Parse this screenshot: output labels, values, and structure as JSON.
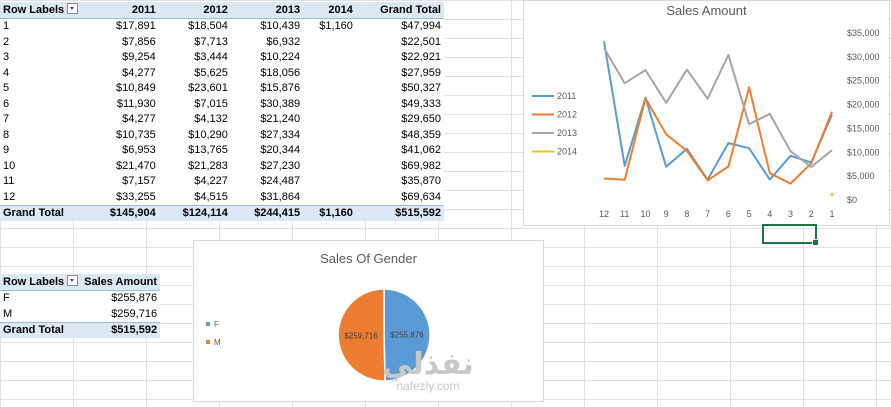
{
  "pivot1": {
    "headers": [
      "Row Labels",
      "2011",
      "2012",
      "2013",
      "2014",
      "Grand Total"
    ],
    "rows": [
      [
        "1",
        "$17,891",
        "$18,504",
        "$10,439",
        "$1,160",
        "$47,994"
      ],
      [
        "2",
        "$7,856",
        "$7,713",
        "$6,932",
        "",
        "$22,501"
      ],
      [
        "3",
        "$9,254",
        "$3,444",
        "$10,224",
        "",
        "$22,921"
      ],
      [
        "4",
        "$4,277",
        "$5,625",
        "$18,056",
        "",
        "$27,959"
      ],
      [
        "5",
        "$10,849",
        "$23,601",
        "$15,876",
        "",
        "$50,327"
      ],
      [
        "6",
        "$11,930",
        "$7,015",
        "$30,389",
        "",
        "$49,333"
      ],
      [
        "7",
        "$4,277",
        "$4,132",
        "$21,240",
        "",
        "$29,650"
      ],
      [
        "8",
        "$10,735",
        "$10,290",
        "$27,334",
        "",
        "$48,359"
      ],
      [
        "9",
        "$6,953",
        "$13,765",
        "$20,344",
        "",
        "$41,062"
      ],
      [
        "10",
        "$21,470",
        "$21,283",
        "$27,230",
        "",
        "$69,982"
      ],
      [
        "11",
        "$7,157",
        "$4,227",
        "$24,487",
        "",
        "$35,870"
      ],
      [
        "12",
        "$33,255",
        "$4,515",
        "$31,864",
        "",
        "$69,634"
      ]
    ],
    "total": [
      "Grand Total",
      "$145,904",
      "$124,114",
      "$244,415",
      "$1,160",
      "$515,592"
    ]
  },
  "pivot2": {
    "headers": [
      "Row Labels",
      "Sales Amount"
    ],
    "rows": [
      [
        "F",
        "$255,876"
      ],
      [
        "M",
        "$259,716"
      ]
    ],
    "total": [
      "Grand Total",
      "$515,592"
    ]
  },
  "chart_data": [
    {
      "type": "line",
      "title": "Sales Amount",
      "categories": [
        "12",
        "11",
        "10",
        "9",
        "8",
        "7",
        "6",
        "5",
        "4",
        "3",
        "2",
        "1"
      ],
      "y_tick_labels": [
        "$0",
        "$5,000",
        "$10,000",
        "$15,000",
        "$20,000",
        "$25,000",
        "$30,000",
        "$35,000"
      ],
      "ylim": [
        0,
        35000
      ],
      "grid": false,
      "legend_position": "left",
      "series": [
        {
          "name": "2011",
          "color": "#5b9bd5",
          "values": [
            33255,
            7157,
            21470,
            6953,
            10735,
            4277,
            11930,
            10849,
            4277,
            9254,
            7856,
            17891
          ]
        },
        {
          "name": "2012",
          "color": "#ed7d31",
          "values": [
            4515,
            4227,
            21283,
            13765,
            10290,
            4132,
            7015,
            23601,
            5625,
            3444,
            7713,
            18504
          ]
        },
        {
          "name": "2013",
          "color": "#a5a5a5",
          "values": [
            31864,
            24487,
            27230,
            20344,
            27334,
            21240,
            30389,
            15876,
            18056,
            10224,
            6932,
            10439
          ]
        },
        {
          "name": "2014",
          "color": "#ffc000",
          "values": [
            null,
            null,
            null,
            null,
            null,
            null,
            null,
            null,
            null,
            null,
            null,
            1160
          ]
        }
      ]
    },
    {
      "type": "pie",
      "title": "Sales Of Gender",
      "legend_position": "left",
      "slices": [
        {
          "label": "F",
          "value": 255876,
          "display": "$255,876",
          "color": "#5b9bd5"
        },
        {
          "label": "M",
          "value": 259716,
          "display": "$259,716",
          "color": "#ed7d31"
        }
      ]
    }
  ],
  "watermark": {
    "main": "نفذلي",
    "sub": "nafezly.com"
  }
}
